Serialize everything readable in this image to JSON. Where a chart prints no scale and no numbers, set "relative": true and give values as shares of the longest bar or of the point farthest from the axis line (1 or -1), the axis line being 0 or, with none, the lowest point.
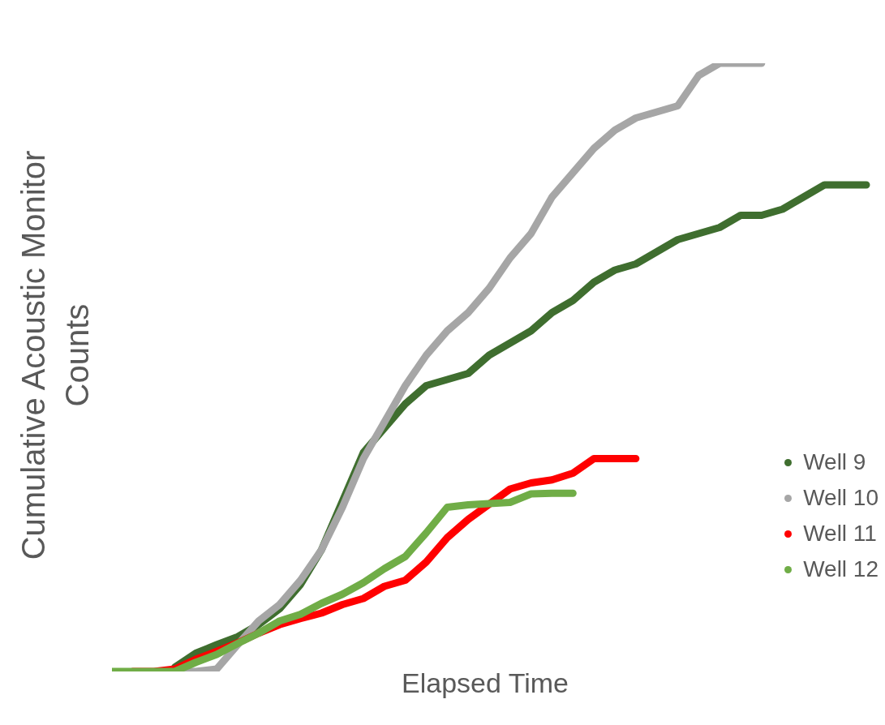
{
  "chart_data": {
    "type": "line",
    "relative": true,
    "xlabel": "Elapsed Time",
    "ylabel": "Cumulative Acoustic Monitor Counts",
    "legend": "right",
    "line_style": "solid",
    "categories": [
      null,
      null,
      null,
      null,
      null,
      null,
      null,
      null,
      null,
      null,
      null,
      null,
      null,
      null,
      null,
      null,
      null,
      null,
      null,
      null,
      null,
      null,
      null,
      null,
      null,
      null,
      null,
      null,
      null,
      null,
      null,
      null,
      null,
      null,
      null,
      null,
      null
    ],
    "series": [
      {
        "name": "Well 9",
        "color": "#3f6e2f",
        "values": [
          null,
          null,
          null,
          0.007,
          0.03,
          0.044,
          0.057,
          0.077,
          0.103,
          0.143,
          0.2,
          0.28,
          0.36,
          0.4,
          0.44,
          0.47,
          0.48,
          0.49,
          0.52,
          0.54,
          0.56,
          0.59,
          0.61,
          0.64,
          0.66,
          0.67,
          0.69,
          0.71,
          0.72,
          0.73,
          0.75,
          0.75,
          0.76,
          0.78,
          0.8,
          0.8,
          0.8
        ]
      },
      {
        "name": "Well 10",
        "color": "#a6a6a6",
        "values": [
          null,
          null,
          null,
          0,
          0,
          0.004,
          0.044,
          0.083,
          0.11,
          0.15,
          0.2,
          0.27,
          0.35,
          0.41,
          0.47,
          0.52,
          0.56,
          0.59,
          0.63,
          0.68,
          0.72,
          0.78,
          0.82,
          0.86,
          0.89,
          0.91,
          0.92,
          0.93,
          0.98,
          1,
          1,
          1,
          null,
          null,
          null,
          null,
          null
        ]
      },
      {
        "name": "Well 11",
        "color": "#ff0000",
        "values": [
          null,
          0,
          0,
          0.004,
          0.02,
          0.033,
          0.047,
          0.063,
          0.077,
          0.087,
          0.096,
          0.11,
          0.12,
          0.14,
          0.15,
          0.18,
          0.22,
          0.25,
          0.275,
          0.3,
          0.31,
          0.315,
          0.326,
          0.35,
          0.35,
          0.35,
          null,
          null,
          null,
          null,
          null,
          null,
          null,
          null,
          null,
          null,
          null
        ]
      },
      {
        "name": "Well 12",
        "color": "#70ad47",
        "values": [
          0,
          0,
          0,
          0,
          0.015,
          0.028,
          0.046,
          0.063,
          0.083,
          0.094,
          0.112,
          0.127,
          0.146,
          0.169,
          0.189,
          0.228,
          0.27,
          0.274,
          0.276,
          0.278,
          0.292,
          0.293,
          0.293,
          null,
          null,
          null,
          null,
          null,
          null,
          null,
          null,
          null,
          null,
          null,
          null,
          null,
          null
        ]
      }
    ]
  }
}
